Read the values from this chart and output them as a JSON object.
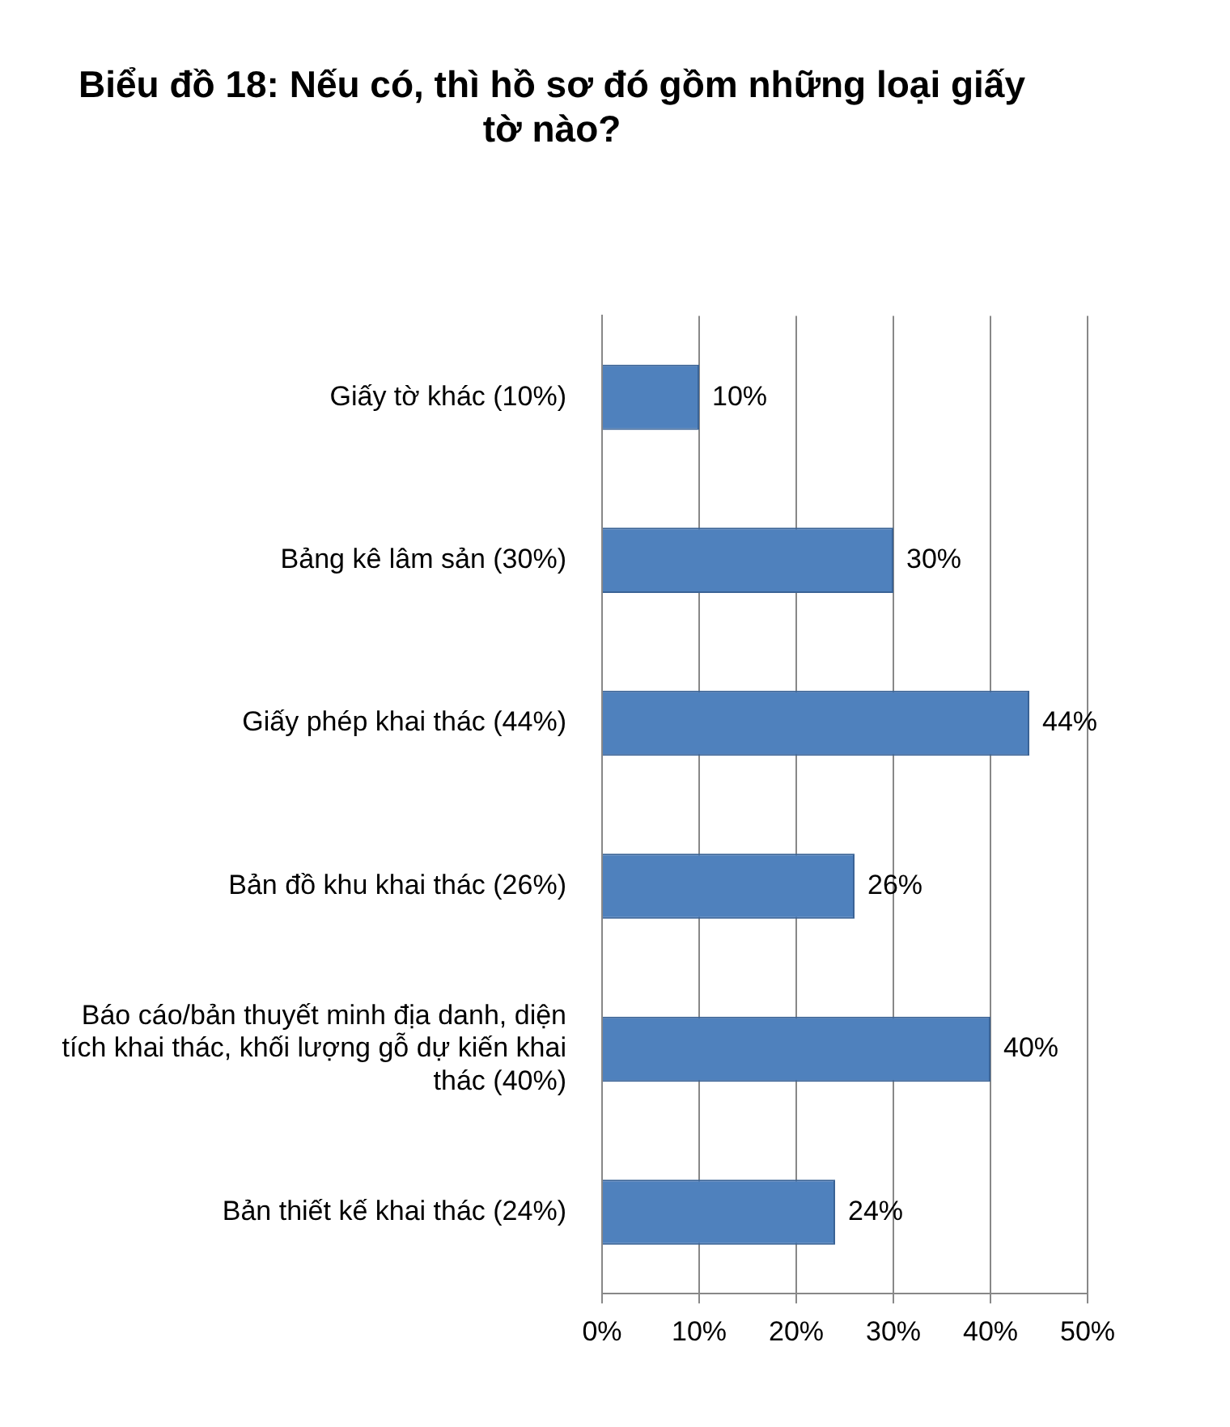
{
  "chart_data": {
    "type": "bar",
    "orientation": "horizontal",
    "title": "Biểu đồ 18: Nếu có, thì hồ sơ đó gồm những loại giấy tờ nào?",
    "categories": [
      "Giấy tờ khác (10%)",
      "Bảng kê lâm sản (30%)",
      "Giấy phép khai thác (44%)",
      "Bản đồ khu khai thác (26%)",
      "Báo cáo/bản thuyết minh địa danh, diện tích khai thác, khối lượng gỗ dự kiến khai thác (40%)",
      "Bản thiết kế khai thác (24%)"
    ],
    "values": [
      10,
      30,
      44,
      26,
      40,
      24
    ],
    "value_labels": [
      "10%",
      "30%",
      "44%",
      "26%",
      "40%",
      "24%"
    ],
    "color": "#4f81bd",
    "xlim": [
      0,
      50
    ],
    "xticks": [
      {
        "value": 0,
        "label": "0%"
      },
      {
        "value": 10,
        "label": "10%"
      },
      {
        "value": 20,
        "label": "20%"
      },
      {
        "value": 30,
        "label": "30%"
      },
      {
        "value": 40,
        "label": "40%"
      },
      {
        "value": 50,
        "label": "50%"
      }
    ],
    "grid": "x",
    "legend": false
  }
}
